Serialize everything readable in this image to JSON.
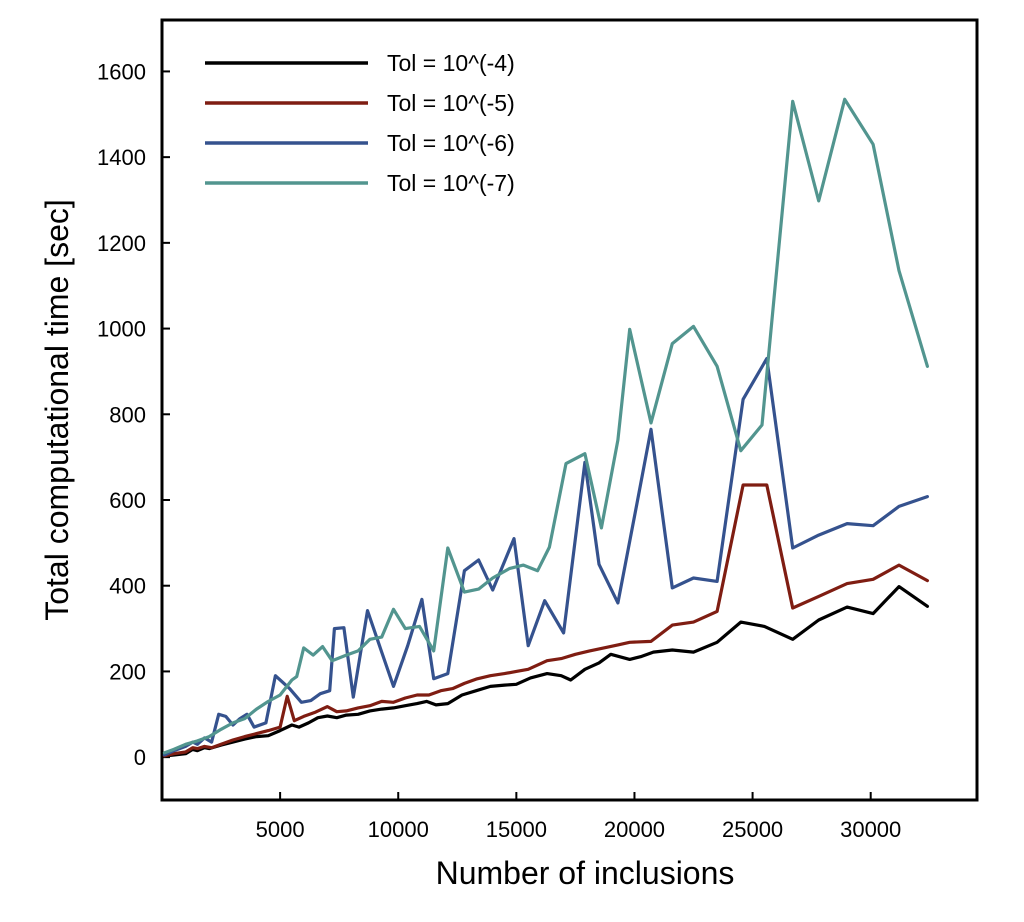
{
  "chart_data": {
    "type": "line",
    "title": "",
    "xlabel": "Number of inclusions",
    "ylabel": "Total computational time [sec]",
    "xlim": [
      0,
      34500
    ],
    "ylim": [
      -100,
      1720
    ],
    "xticks": [
      5000,
      10000,
      15000,
      20000,
      25000,
      30000
    ],
    "yticks": [
      0,
      200,
      400,
      600,
      800,
      1000,
      1200,
      1400,
      1600
    ],
    "grid": false,
    "legend_position": "top-left",
    "series": [
      {
        "name": "Tol = 10^(-4)",
        "color": "#000000",
        "points": [
          [
            100,
            3
          ],
          [
            500,
            5
          ],
          [
            1000,
            8
          ],
          [
            1300,
            18
          ],
          [
            1500,
            15
          ],
          [
            1800,
            22
          ],
          [
            2000,
            20
          ],
          [
            2500,
            28
          ],
          [
            3000,
            35
          ],
          [
            3500,
            42
          ],
          [
            4000,
            48
          ],
          [
            4500,
            50
          ],
          [
            5000,
            62
          ],
          [
            5500,
            75
          ],
          [
            5800,
            70
          ],
          [
            6200,
            80
          ],
          [
            6600,
            92
          ],
          [
            7000,
            96
          ],
          [
            7400,
            92
          ],
          [
            7800,
            98
          ],
          [
            8300,
            100
          ],
          [
            8800,
            108
          ],
          [
            9300,
            112
          ],
          [
            9800,
            115
          ],
          [
            10300,
            120
          ],
          [
            10800,
            125
          ],
          [
            11200,
            130
          ],
          [
            11600,
            122
          ],
          [
            12100,
            125
          ],
          [
            12700,
            145
          ],
          [
            13300,
            155
          ],
          [
            13900,
            165
          ],
          [
            14500,
            168
          ],
          [
            15000,
            170
          ],
          [
            15600,
            185
          ],
          [
            16300,
            195
          ],
          [
            16900,
            190
          ],
          [
            17300,
            180
          ],
          [
            17900,
            205
          ],
          [
            18500,
            220
          ],
          [
            19000,
            240
          ],
          [
            19800,
            228
          ],
          [
            20300,
            235
          ],
          [
            20800,
            245
          ],
          [
            21600,
            250
          ],
          [
            22500,
            245
          ],
          [
            23500,
            268
          ],
          [
            24500,
            315
          ],
          [
            25500,
            305
          ],
          [
            26700,
            275
          ],
          [
            27800,
            320
          ],
          [
            29000,
            350
          ],
          [
            30100,
            335
          ],
          [
            31200,
            398
          ],
          [
            32400,
            352
          ]
        ]
      },
      {
        "name": "Tol = 10^(-5)",
        "color": "#7f1d12",
        "points": [
          [
            100,
            3
          ],
          [
            500,
            8
          ],
          [
            1000,
            12
          ],
          [
            1300,
            22
          ],
          [
            1500,
            20
          ],
          [
            1800,
            25
          ],
          [
            2100,
            22
          ],
          [
            2500,
            30
          ],
          [
            3000,
            40
          ],
          [
            3500,
            48
          ],
          [
            4000,
            55
          ],
          [
            4500,
            62
          ],
          [
            5000,
            70
          ],
          [
            5300,
            142
          ],
          [
            5600,
            85
          ],
          [
            6000,
            95
          ],
          [
            6500,
            105
          ],
          [
            7000,
            118
          ],
          [
            7400,
            106
          ],
          [
            7800,
            108
          ],
          [
            8300,
            115
          ],
          [
            8800,
            120
          ],
          [
            9300,
            130
          ],
          [
            9800,
            128
          ],
          [
            10300,
            138
          ],
          [
            10800,
            145
          ],
          [
            11300,
            145
          ],
          [
            11800,
            155
          ],
          [
            12300,
            160
          ],
          [
            12800,
            172
          ],
          [
            13300,
            182
          ],
          [
            13900,
            190
          ],
          [
            14500,
            195
          ],
          [
            15000,
            200
          ],
          [
            15500,
            205
          ],
          [
            16300,
            225
          ],
          [
            16900,
            230
          ],
          [
            17500,
            240
          ],
          [
            18100,
            248
          ],
          [
            18700,
            255
          ],
          [
            19300,
            262
          ],
          [
            19800,
            268
          ],
          [
            20700,
            270
          ],
          [
            21600,
            308
          ],
          [
            22500,
            315
          ],
          [
            23500,
            340
          ],
          [
            24600,
            635
          ],
          [
            25600,
            635
          ],
          [
            26700,
            348
          ],
          [
            27800,
            375
          ],
          [
            29000,
            405
          ],
          [
            30100,
            415
          ],
          [
            31200,
            448
          ],
          [
            32400,
            412
          ]
        ]
      },
      {
        "name": "Tol = 10^(-6)",
        "color": "#35528e",
        "points": [
          [
            100,
            5
          ],
          [
            500,
            15
          ],
          [
            1000,
            25
          ],
          [
            1300,
            35
          ],
          [
            1500,
            30
          ],
          [
            1800,
            45
          ],
          [
            2100,
            35
          ],
          [
            2400,
            100
          ],
          [
            2700,
            95
          ],
          [
            3000,
            75
          ],
          [
            3300,
            90
          ],
          [
            3600,
            100
          ],
          [
            3900,
            70
          ],
          [
            4400,
            80
          ],
          [
            4800,
            190
          ],
          [
            5400,
            160
          ],
          [
            5900,
            128
          ],
          [
            6300,
            132
          ],
          [
            6700,
            148
          ],
          [
            7100,
            155
          ],
          [
            7300,
            300
          ],
          [
            7700,
            302
          ],
          [
            8100,
            140
          ],
          [
            8700,
            342
          ],
          [
            9300,
            245
          ],
          [
            9800,
            165
          ],
          [
            10400,
            260
          ],
          [
            11000,
            368
          ],
          [
            11500,
            183
          ],
          [
            12100,
            195
          ],
          [
            12800,
            435
          ],
          [
            13400,
            460
          ],
          [
            14000,
            390
          ],
          [
            14900,
            510
          ],
          [
            15500,
            260
          ],
          [
            16200,
            365
          ],
          [
            17000,
            290
          ],
          [
            17900,
            688
          ],
          [
            18500,
            450
          ],
          [
            19300,
            360
          ],
          [
            20100,
            590
          ],
          [
            20700,
            765
          ],
          [
            21600,
            395
          ],
          [
            22500,
            418
          ],
          [
            23500,
            410
          ],
          [
            24600,
            835
          ],
          [
            25600,
            930
          ],
          [
            26700,
            488
          ],
          [
            27800,
            518
          ],
          [
            29000,
            545
          ],
          [
            30100,
            540
          ],
          [
            31200,
            585
          ],
          [
            32400,
            608
          ]
        ]
      },
      {
        "name": "Tol = 10^(-7)",
        "color": "#52958f",
        "points": [
          [
            100,
            10
          ],
          [
            500,
            18
          ],
          [
            1000,
            30
          ],
          [
            1500,
            38
          ],
          [
            2000,
            48
          ],
          [
            2500,
            65
          ],
          [
            3000,
            80
          ],
          [
            3500,
            90
          ],
          [
            4000,
            112
          ],
          [
            4500,
            130
          ],
          [
            5000,
            145
          ],
          [
            5500,
            180
          ],
          [
            5700,
            188
          ],
          [
            6000,
            255
          ],
          [
            6400,
            238
          ],
          [
            6800,
            258
          ],
          [
            7200,
            225
          ],
          [
            7800,
            238
          ],
          [
            8300,
            248
          ],
          [
            8800,
            275
          ],
          [
            9300,
            280
          ],
          [
            9800,
            345
          ],
          [
            10300,
            300
          ],
          [
            10900,
            305
          ],
          [
            11500,
            248
          ],
          [
            12100,
            488
          ],
          [
            12800,
            385
          ],
          [
            13400,
            392
          ],
          [
            14000,
            418
          ],
          [
            14700,
            440
          ],
          [
            15300,
            448
          ],
          [
            15900,
            435
          ],
          [
            16400,
            490
          ],
          [
            17100,
            685
          ],
          [
            17900,
            708
          ],
          [
            18600,
            535
          ],
          [
            19300,
            740
          ],
          [
            19800,
            998
          ],
          [
            20700,
            780
          ],
          [
            21600,
            965
          ],
          [
            22500,
            1005
          ],
          [
            23500,
            912
          ],
          [
            24500,
            715
          ],
          [
            25400,
            775
          ],
          [
            26700,
            1530
          ],
          [
            27800,
            1298
          ],
          [
            28900,
            1535
          ],
          [
            30100,
            1430
          ],
          [
            31200,
            1135
          ],
          [
            32400,
            912
          ]
        ]
      }
    ]
  }
}
